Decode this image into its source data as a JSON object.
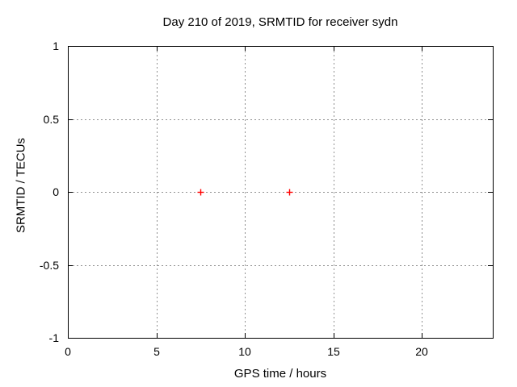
{
  "window": {
    "background": "#ffffff"
  },
  "chart_data": {
    "type": "scatter",
    "title": "Day 210 of 2019, SRMTID for receiver sydn",
    "xlabel": "GPS time / hours",
    "ylabel": "SRMTID / TECUs",
    "xlim": [
      0,
      24
    ],
    "ylim": [
      -1,
      1
    ],
    "xticks": [
      0,
      5,
      10,
      15,
      20
    ],
    "xtick_labels": [
      "0",
      "5",
      "10",
      "15",
      "20"
    ],
    "yticks": [
      1,
      0.5,
      0,
      -0.5,
      -1
    ],
    "ytick_labels": [
      "1",
      "0.5",
      "0",
      "-0.5",
      "-1"
    ],
    "grid": true,
    "legend": false,
    "series": [
      {
        "name": "SRMTID",
        "marker": "plus",
        "color": "#ff0000",
        "points": [
          [
            7.5,
            0
          ],
          [
            12.5,
            0
          ]
        ]
      }
    ]
  },
  "colors": {
    "background": "#ffffff",
    "text": "#000000",
    "border": "#000000",
    "grid": "#909090",
    "marker": "#ff0000"
  }
}
